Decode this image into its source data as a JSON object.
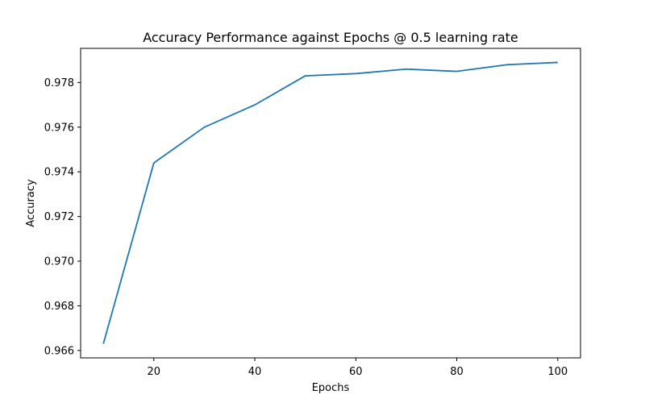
{
  "chart_data": {
    "type": "line",
    "title": "Accuracy Performance against Epochs @ 0.5 learning rate",
    "xlabel": "Epochs",
    "ylabel": "Accuracy",
    "x": [
      10,
      20,
      30,
      40,
      50,
      60,
      70,
      80,
      90,
      100
    ],
    "series": [
      {
        "values": [
          0.9663,
          0.9744,
          0.976,
          0.977,
          0.9783,
          0.9784,
          0.9786,
          0.9785,
          0.9788,
          0.9789
        ],
        "color": "#1f77b4"
      }
    ],
    "xlim": [
      5.5,
      104.5
    ],
    "ylim": [
      0.96567,
      0.97953
    ],
    "xticks": [
      20,
      40,
      60,
      80,
      100
    ],
    "xtick_labels": [
      "20",
      "40",
      "60",
      "80",
      "100"
    ],
    "yticks": [
      0.966,
      0.968,
      0.97,
      0.972,
      0.974,
      0.976,
      0.978
    ],
    "ytick_labels": [
      "0.966",
      "0.968",
      "0.970",
      "0.972",
      "0.974",
      "0.976",
      "0.978"
    ],
    "grid": false,
    "legend": "none"
  }
}
